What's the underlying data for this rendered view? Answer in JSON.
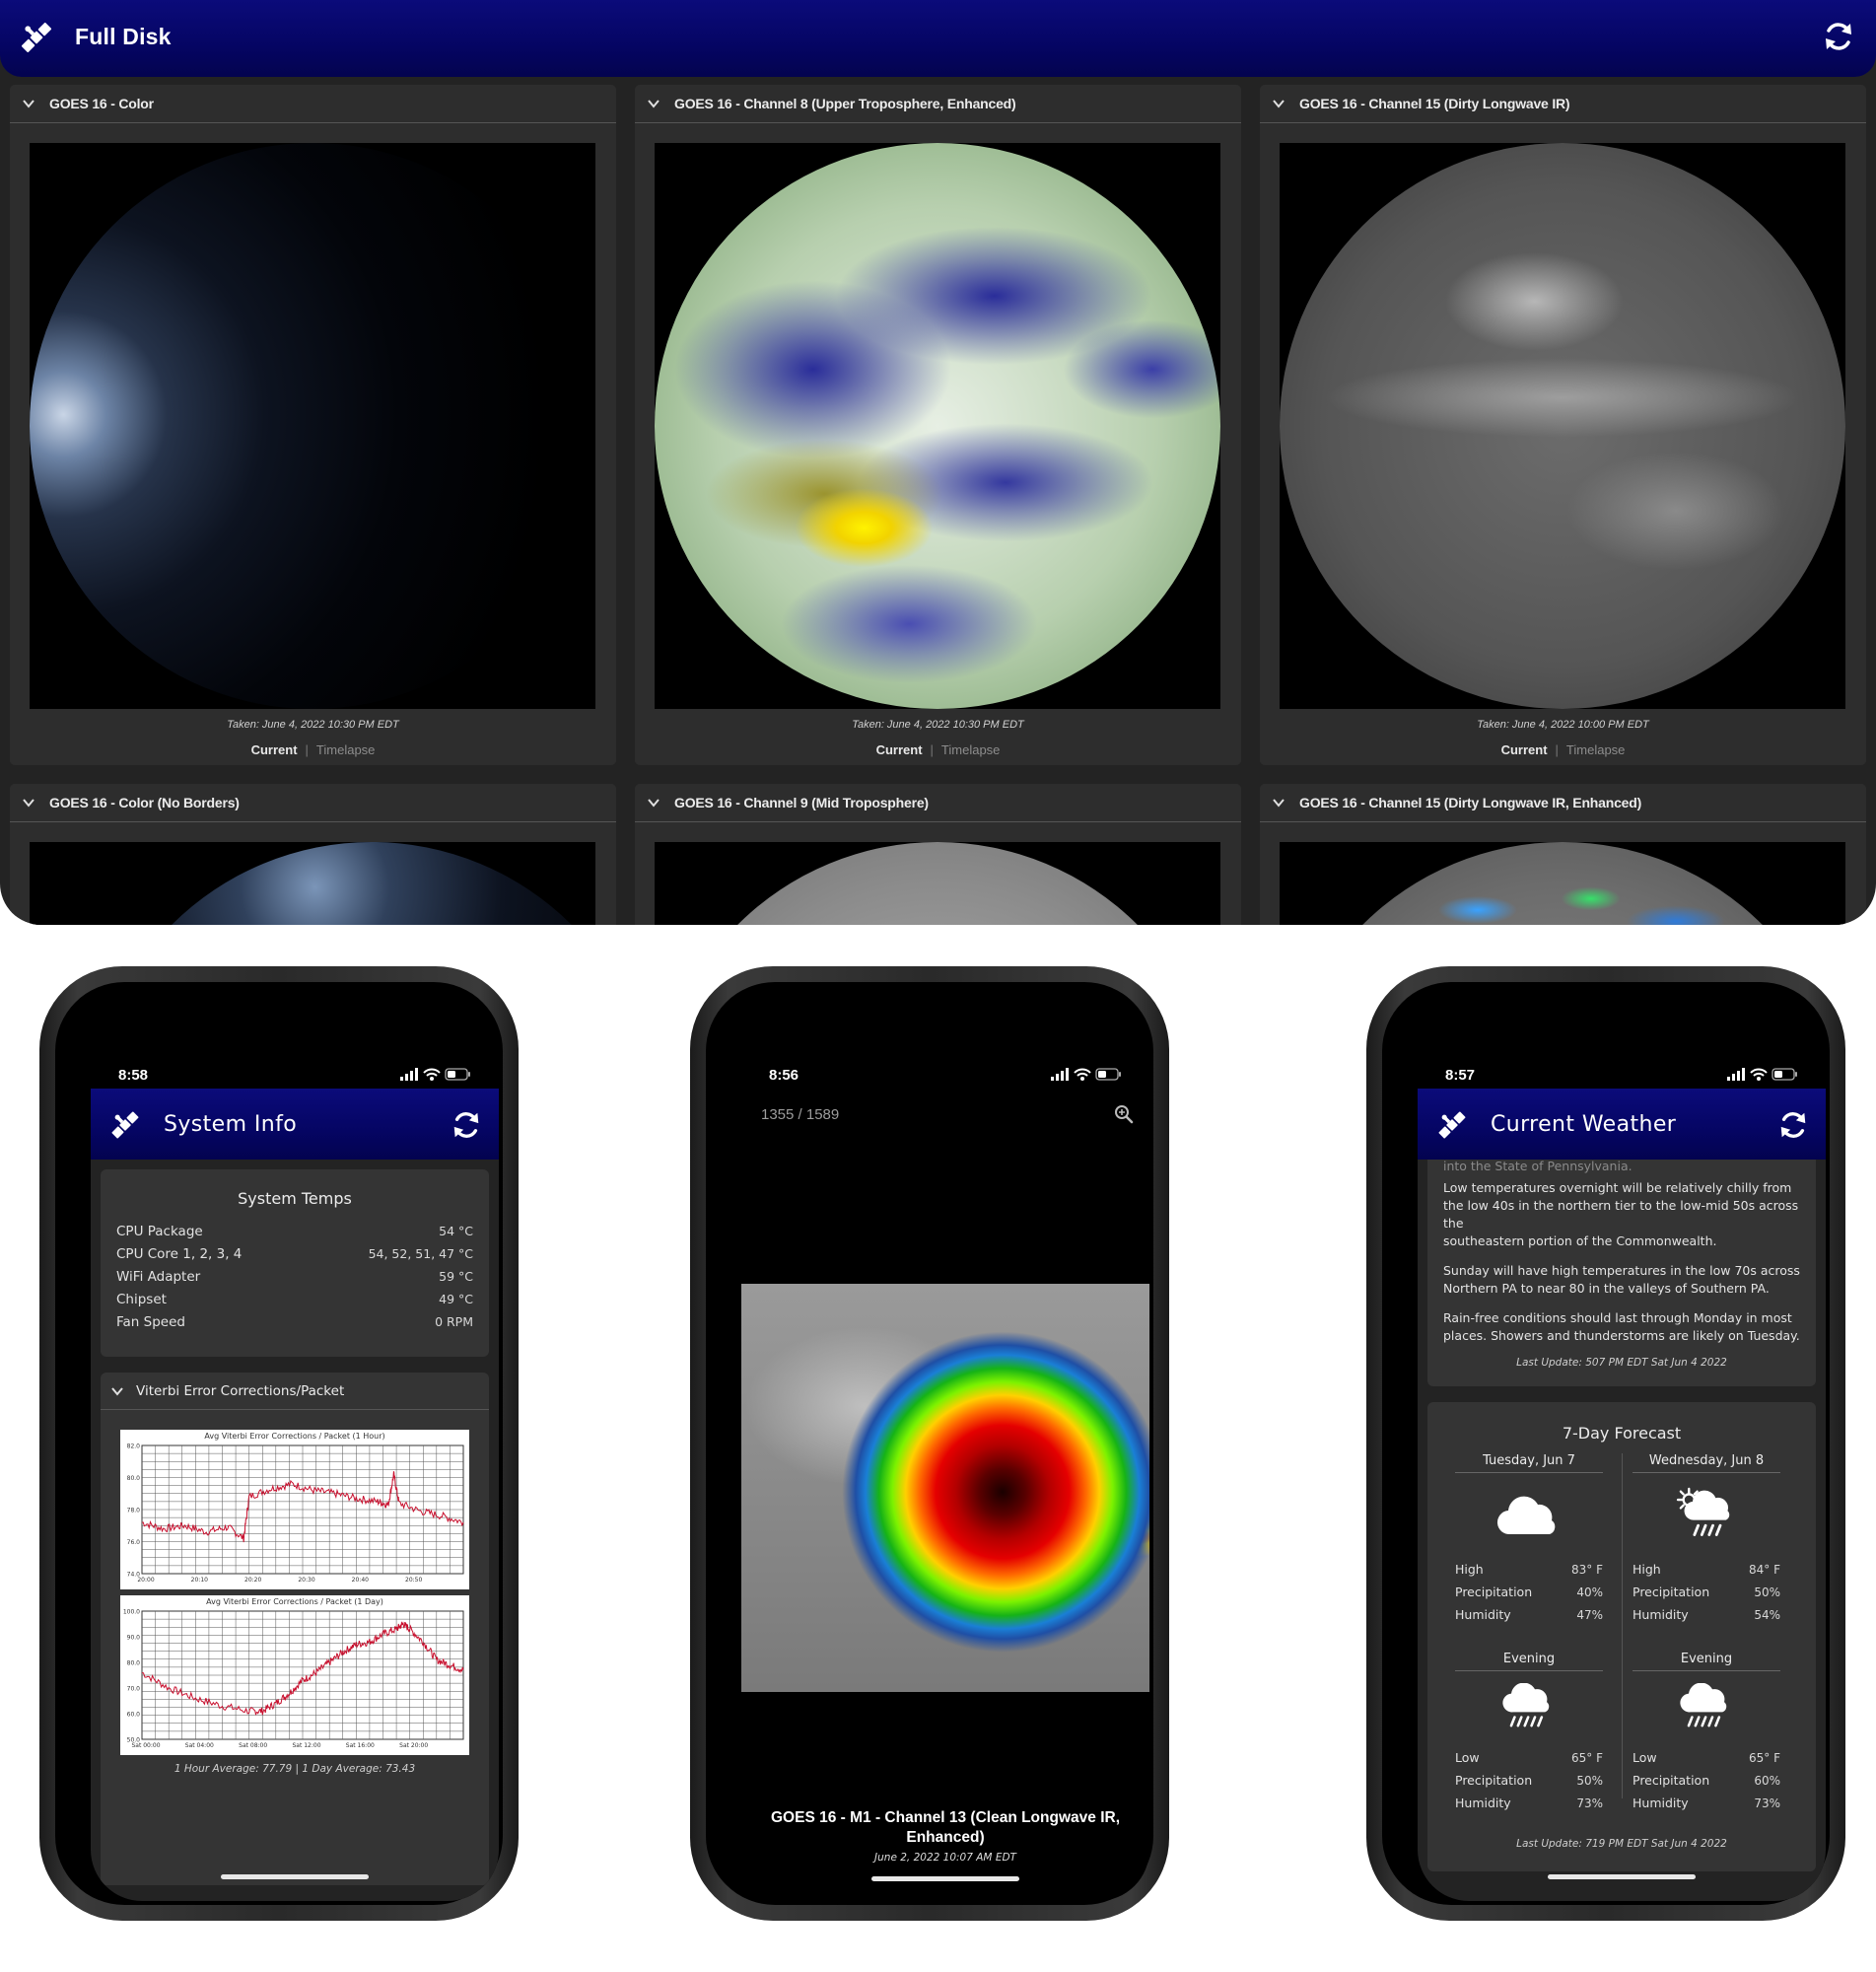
{
  "desktop": {
    "title": "Full Disk",
    "cards": [
      {
        "label": "GOES 16 - Color",
        "taken": "Taken: June 4, 2022 10:30 PM EDT",
        "current": "Current",
        "separator": "|",
        "timelapse": "Timelapse"
      },
      {
        "label": "GOES 16 - Channel 8 (Upper Troposphere, Enhanced)",
        "taken": "Taken: June 4, 2022 10:30 PM EDT",
        "current": "Current",
        "separator": "|",
        "timelapse": "Timelapse"
      },
      {
        "label": "GOES 16 - Channel 15 (Dirty Longwave IR)",
        "taken": "Taken: June 4, 2022 10:00 PM EDT",
        "current": "Current",
        "separator": "|",
        "timelapse": "Timelapse"
      },
      {
        "label": "GOES 16 - Color (No Borders)"
      },
      {
        "label": "GOES 16 - Channel 9 (Mid Troposphere)"
      },
      {
        "label": "GOES 16 - Channel 15 (Dirty Longwave IR, Enhanced)"
      }
    ]
  },
  "phone_system": {
    "time": "8:58",
    "title": "System Info",
    "temps_title": "System Temps",
    "temps": [
      {
        "label": "CPU Package",
        "value": "54 °C"
      },
      {
        "label": "CPU Core 1, 2, 3, 4",
        "value": "54, 52, 51, 47 °C"
      },
      {
        "label": "WiFi Adapter",
        "value": "59 °C"
      },
      {
        "label": "Chipset",
        "value": "49 °C"
      },
      {
        "label": "Fan Speed",
        "value": "0 RPM"
      }
    ],
    "viterbi_title": "Viterbi Error Corrections/Packet",
    "averages": "1 Hour Average: 77.79 | 1 Day Average: 73.43"
  },
  "phone_image": {
    "time": "8:56",
    "counter": "1355 / 1589",
    "caption": "GOES 16 - M1 - Channel 13 (Clean Longwave IR, Enhanced)",
    "date": "June 2, 2022 10:07 AM EDT"
  },
  "phone_weather": {
    "time": "8:57",
    "title": "Current Weather",
    "cutoff_text": "into the State of Pennsylvania.",
    "paragraphs": [
      "Low temperatures overnight will be relatively chilly from the low 40s in the northern tier to the low-mid 50s across the",
      "southeastern portion of the Commonwealth.",
      "Sunday will have high temperatures in the low 70s across Northern PA to near 80 in the valleys of Southern PA.",
      "Rain-free conditions should last through Monday in most places. Showers and thunderstorms are likely on Tuesday."
    ],
    "last_update_1": "Last Update: 507 PM EDT Sat Jun 4 2022",
    "forecast_title": "7-Day Forecast",
    "days": [
      {
        "name": "Tuesday, Jun 7",
        "icon": "cloud-icon",
        "rows": [
          {
            "label": "High",
            "value": "83° F"
          },
          {
            "label": "Precipitation",
            "value": "40%"
          },
          {
            "label": "Humidity",
            "value": "47%"
          }
        ],
        "evening": "Evening",
        "evening_icon": "rain-cloud-icon",
        "evening_rows": [
          {
            "label": "Low",
            "value": "65° F"
          },
          {
            "label": "Precipitation",
            "value": "50%"
          },
          {
            "label": "Humidity",
            "value": "73%"
          }
        ]
      },
      {
        "name": "Wednesday, Jun 8",
        "icon": "sun-rain-cloud-icon",
        "rows": [
          {
            "label": "High",
            "value": "84° F"
          },
          {
            "label": "Precipitation",
            "value": "50%"
          },
          {
            "label": "Humidity",
            "value": "54%"
          }
        ],
        "evening": "Evening",
        "evening_icon": "rain-cloud-icon",
        "evening_rows": [
          {
            "label": "Low",
            "value": "65° F"
          },
          {
            "label": "Precipitation",
            "value": "60%"
          },
          {
            "label": "Humidity",
            "value": "73%"
          }
        ]
      }
    ],
    "last_update_2": "Last Update: 719 PM EDT Sat Jun 4 2022"
  },
  "chart_data": [
    {
      "type": "line",
      "title": "Avg Viterbi Error Corrections / Packet (1 Hour)",
      "x": [
        "20:00",
        "20:10",
        "20:20",
        "20:30",
        "20:40",
        "20:50"
      ],
      "yticks": [
        "82.0",
        "80.0",
        "78.0",
        "76.0",
        "74.0"
      ],
      "ylim": [
        74,
        82
      ],
      "xlim": [
        0,
        60
      ],
      "series": [
        {
          "color": "#c8102e",
          "points": [
            [
              0,
              77.2
            ],
            [
              4,
              76.8
            ],
            [
              8,
              77.0
            ],
            [
              12,
              76.6
            ],
            [
              16,
              76.9
            ],
            [
              19,
              76.2
            ],
            [
              20,
              78.8
            ],
            [
              24,
              79.3
            ],
            [
              28,
              79.6
            ],
            [
              32,
              79.2
            ],
            [
              36,
              79.0
            ],
            [
              40,
              78.7
            ],
            [
              44,
              78.5
            ],
            [
              46,
              78.3
            ],
            [
              47,
              80.2
            ],
            [
              48,
              78.4
            ],
            [
              52,
              77.9
            ],
            [
              56,
              77.6
            ],
            [
              60,
              77.2
            ]
          ]
        }
      ],
      "grid": true
    },
    {
      "type": "line",
      "title": "Avg Viterbi Error Corrections / Packet (1 Day)",
      "x": [
        "Sat 00:00",
        "Sat 04:00",
        "Sat 08:00",
        "Sat 12:00",
        "Sat 16:00",
        "Sat 20:00"
      ],
      "yticks": [
        "100.0",
        "90.0",
        "80.0",
        "70.0",
        "60.0",
        "50.0"
      ],
      "ylim": [
        50,
        100
      ],
      "xlim": [
        0,
        24
      ],
      "series": [
        {
          "color": "#c8102e",
          "points": [
            [
              0,
              76
            ],
            [
              2,
              70
            ],
            [
              4,
              66
            ],
            [
              6,
              63
            ],
            [
              8,
              61
            ],
            [
              9,
              61
            ],
            [
              10,
              64
            ],
            [
              11,
              68
            ],
            [
              12,
              73
            ],
            [
              13,
              76
            ],
            [
              14,
              80
            ],
            [
              15,
              84
            ],
            [
              16,
              87
            ],
            [
              17,
              88
            ],
            [
              18,
              91
            ],
            [
              19,
              93
            ],
            [
              19.5,
              95
            ],
            [
              20,
              93
            ],
            [
              21,
              88
            ],
            [
              22,
              81
            ],
            [
              23,
              79
            ],
            [
              24,
              77
            ]
          ]
        }
      ],
      "grid": true
    }
  ],
  "colors": {
    "header_blue": "#050563",
    "panel": "#2d2d2d",
    "chart_line": "#c8102e"
  }
}
